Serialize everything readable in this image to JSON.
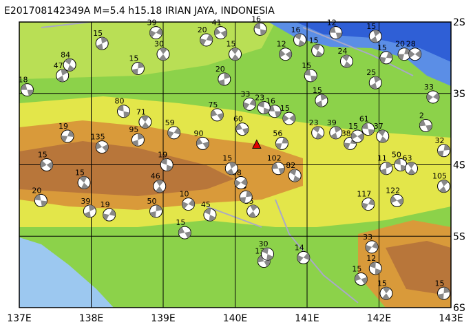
{
  "map": {
    "title": "E201708142349A  M=5.4  h15.18  IRIAN JAYA, INDONESIA",
    "xlim": [
      137,
      143
    ],
    "ylim": [
      -6,
      -2
    ],
    "xticks": [
      {
        "value": 137,
        "label": "137E"
      },
      {
        "value": 138,
        "label": "138E"
      },
      {
        "value": 139,
        "label": "139E"
      },
      {
        "value": 140,
        "label": "140E"
      },
      {
        "value": 141,
        "label": "141E"
      },
      {
        "value": 142,
        "label": "142E"
      },
      {
        "value": 143,
        "label": "143E"
      }
    ],
    "yticks": [
      {
        "value": -2,
        "label": "2S"
      },
      {
        "value": -3,
        "label": "3S"
      },
      {
        "value": -4,
        "label": "4S"
      },
      {
        "value": -5,
        "label": "5S"
      },
      {
        "value": -6,
        "label": "6S"
      }
    ],
    "events": [
      {
        "lon": 137.11,
        "lat": -2.95,
        "depth": 18
      },
      {
        "lon": 137.7,
        "lat": -2.6,
        "depth": 84
      },
      {
        "lon": 137.6,
        "lat": -2.75,
        "depth": 47
      },
      {
        "lon": 137.67,
        "lat": -3.6,
        "depth": 19
      },
      {
        "lon": 137.38,
        "lat": -4.0,
        "depth": 15
      },
      {
        "lon": 137.3,
        "lat": -4.5,
        "depth": 20
      },
      {
        "lon": 137.9,
        "lat": -4.25,
        "depth": 15
      },
      {
        "lon": 137.98,
        "lat": -4.65,
        "depth": 39
      },
      {
        "lon": 138.25,
        "lat": -4.7,
        "depth": 19
      },
      {
        "lon": 138.15,
        "lat": -3.75,
        "depth": 135
      },
      {
        "lon": 138.45,
        "lat": -3.25,
        "depth": 80
      },
      {
        "lon": 138.75,
        "lat": -3.4,
        "depth": 71
      },
      {
        "lon": 138.65,
        "lat": -3.65,
        "depth": 95
      },
      {
        "lon": 139.15,
        "lat": -3.55,
        "depth": 59
      },
      {
        "lon": 139.55,
        "lat": -3.7,
        "depth": 90
      },
      {
        "lon": 139.05,
        "lat": -4.0,
        "depth": 19
      },
      {
        "lon": 138.95,
        "lat": -4.3,
        "depth": 46
      },
      {
        "lon": 138.9,
        "lat": -4.65,
        "depth": 50
      },
      {
        "lon": 139.35,
        "lat": -4.55,
        "depth": 10
      },
      {
        "lon": 139.3,
        "lat": -4.95,
        "depth": 15
      },
      {
        "lon": 139.65,
        "lat": -4.7,
        "depth": 45
      },
      {
        "lon": 140.25,
        "lat": -4.65,
        "depth": 15
      },
      {
        "lon": 140.15,
        "lat": -4.45,
        "depth": 14
      },
      {
        "lon": 140.08,
        "lat": -4.25,
        "depth": 68
      },
      {
        "lon": 140.6,
        "lat": -4.05,
        "depth": 102
      },
      {
        "lon": 140.83,
        "lat": -4.15,
        "depth": 82
      },
      {
        "lon": 139.95,
        "lat": -4.05,
        "depth": 15
      },
      {
        "lon": 140.65,
        "lat": -3.7,
        "depth": 56
      },
      {
        "lon": 140.75,
        "lat": -3.35,
        "depth": 15
      },
      {
        "lon": 140.55,
        "lat": -3.25,
        "depth": 16
      },
      {
        "lon": 141.15,
        "lat": -3.55,
        "depth": 23
      },
      {
        "lon": 141.4,
        "lat": -3.55,
        "depth": 39
      },
      {
        "lon": 141.6,
        "lat": -3.7,
        "depth": 38
      },
      {
        "lon": 141.7,
        "lat": -3.6,
        "depth": 15
      },
      {
        "lon": 141.85,
        "lat": -3.5,
        "depth": 61
      },
      {
        "lon": 142.05,
        "lat": -3.6,
        "depth": 37
      },
      {
        "lon": 141.2,
        "lat": -3.1,
        "depth": 15
      },
      {
        "lon": 141.85,
        "lat": -4.55,
        "depth": 117
      },
      {
        "lon": 142.25,
        "lat": -4.5,
        "depth": 122
      },
      {
        "lon": 142.3,
        "lat": -4.0,
        "depth": 50
      },
      {
        "lon": 142.45,
        "lat": -4.05,
        "depth": 63
      },
      {
        "lon": 142.1,
        "lat": -4.05,
        "depth": 11
      },
      {
        "lon": 141.9,
        "lat": -5.15,
        "depth": 33
      },
      {
        "lon": 141.75,
        "lat": -5.6,
        "depth": 15
      },
      {
        "lon": 141.95,
        "lat": -5.45,
        "depth": 12
      },
      {
        "lon": 142.1,
        "lat": -5.8,
        "depth": 15
      },
      {
        "lon": 142.9,
        "lat": -5.8,
        "depth": 15
      },
      {
        "lon": 140.95,
        "lat": -5.3,
        "depth": 14
      },
      {
        "lon": 140.4,
        "lat": -5.35,
        "depth": 13
      },
      {
        "lon": 140.45,
        "lat": -5.25,
        "depth": 30
      },
      {
        "lon": 142.9,
        "lat": -4.3,
        "depth": 105
      },
      {
        "lon": 142.9,
        "lat": -3.8,
        "depth": 32
      },
      {
        "lon": 142.75,
        "lat": -3.05,
        "depth": 33
      },
      {
        "lon": 142.65,
        "lat": -3.45,
        "depth": 2
      },
      {
        "lon": 140.9,
        "lat": -2.25,
        "depth": 16
      },
      {
        "lon": 141.95,
        "lat": -2.2,
        "depth": 15
      },
      {
        "lon": 142.35,
        "lat": -2.45,
        "depth": 20
      },
      {
        "lon": 142.5,
        "lat": -2.45,
        "depth": 28
      },
      {
        "lon": 141.4,
        "lat": -2.15,
        "depth": 12
      },
      {
        "lon": 141.15,
        "lat": -2.4,
        "depth": 15
      },
      {
        "lon": 141.95,
        "lat": -2.85,
        "depth": 25
      },
      {
        "lon": 142.1,
        "lat": -2.5,
        "depth": 15
      },
      {
        "lon": 140.7,
        "lat": -2.45,
        "depth": 12
      },
      {
        "lon": 141.05,
        "lat": -2.75,
        "depth": 15
      },
      {
        "lon": 141.55,
        "lat": -2.55,
        "depth": 24
      },
      {
        "lon": 138.15,
        "lat": -2.3,
        "depth": 15
      },
      {
        "lon": 139.6,
        "lat": -2.25,
        "depth": 20
      },
      {
        "lon": 139.8,
        "lat": -2.15,
        "depth": 41
      },
      {
        "lon": 140.35,
        "lat": -2.1,
        "depth": 16
      },
      {
        "lon": 140.0,
        "lat": -2.45,
        "depth": 15
      },
      {
        "lon": 139.85,
        "lat": -2.8,
        "depth": 20
      },
      {
        "lon": 140.2,
        "lat": -3.15,
        "depth": 33
      },
      {
        "lon": 139.75,
        "lat": -3.3,
        "depth": 75
      },
      {
        "lon": 140.4,
        "lat": -3.2,
        "depth": 23
      },
      {
        "lon": 139.0,
        "lat": -2.45,
        "depth": 30
      },
      {
        "lon": 138.65,
        "lat": -2.65,
        "depth": 15
      },
      {
        "lon": 138.9,
        "lat": -2.15,
        "depth": 39
      },
      {
        "lon": 140.1,
        "lat": -3.5,
        "depth": 60
      }
    ]
  }
}
